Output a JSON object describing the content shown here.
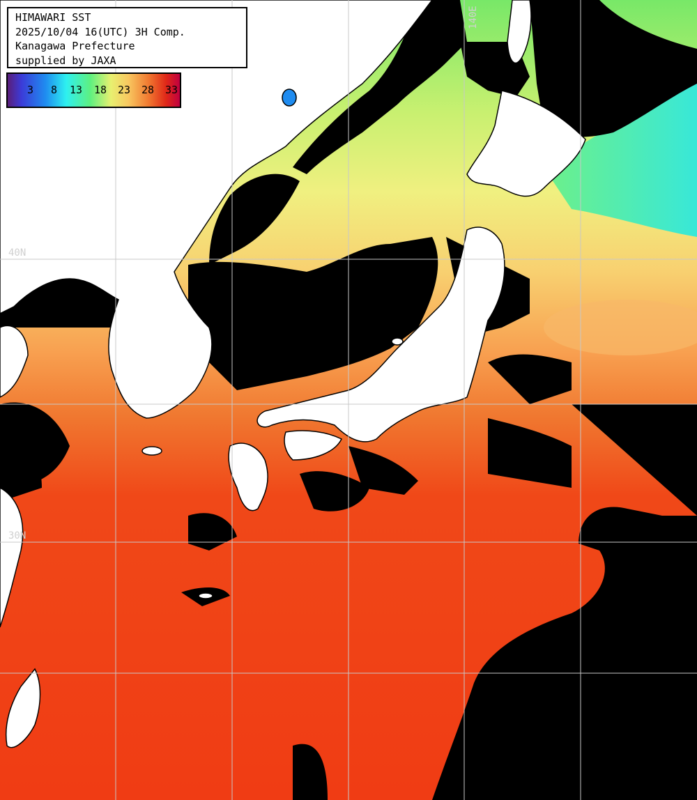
{
  "header": {
    "line1": "HIMAWARI SST",
    "line2": "2025/10/04 16(UTC) 3H Comp.",
    "line3": "Kanagawa Prefecture",
    "line4": "supplied by JAXA"
  },
  "colorbar": {
    "ticks": [
      "3",
      "8",
      "13",
      "18",
      "23",
      "28",
      "33"
    ],
    "stops": [
      "#5a1e7a",
      "#3b3bd8",
      "#1f8cf0",
      "#2ef0f0",
      "#5ef080",
      "#e8f070",
      "#f8c860",
      "#f07830",
      "#e02818",
      "#c00040"
    ]
  },
  "grid": {
    "lat_labels": [
      "40N",
      "30N"
    ],
    "lon_labels": [
      "140E"
    ]
  },
  "colors": {
    "land": "#ffffff",
    "cloud": "#000000",
    "grid": "#c8c8c8",
    "sea_cold": "#7af060",
    "sea_cool": "#e8f070",
    "sea_warm": "#f8a848",
    "sea_hot": "#f04818"
  }
}
